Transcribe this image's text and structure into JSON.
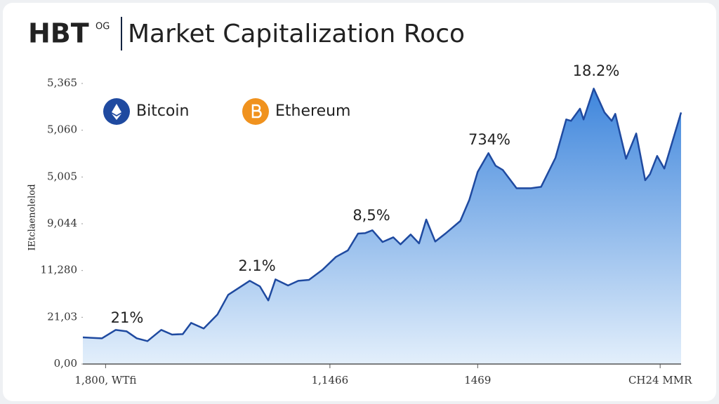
{
  "chart_data": {
    "type": "area",
    "title_prefix": "HBT",
    "title_badge": "OG",
    "title": "Market Capitalization Roco",
    "y_label": "IEtclaenolelod",
    "legend": [
      {
        "name": "Bitcoin",
        "color": "#1f4aa0"
      },
      {
        "name": "Ethereum",
        "color": "#f0921e"
      }
    ],
    "x": [
      0,
      3.2,
      5.5,
      7.3,
      9.0,
      10.8,
      13.1,
      14.9,
      16.7,
      18.1,
      20.2,
      22.5,
      24.3,
      26.1,
      27.9,
      29.6,
      31.0,
      32.2,
      34.3,
      36.0,
      37.8,
      40.1,
      42.3,
      44.3,
      46.0,
      47.2,
      48.4,
      50.1,
      51.9,
      53.1,
      54.8,
      56.2,
      57.4,
      58.9,
      60.7,
      63.1,
      64.6,
      66.0,
      67.8,
      69.0,
      70.2,
      72.5,
      74.9,
      76.6,
      79.0,
      80.8,
      81.6,
      83.1,
      83.7,
      85.4,
      87.2,
      88.4,
      89.0,
      90.8,
      92.5,
      94.0,
      94.8,
      96.0,
      97.2,
      100
    ],
    "series": [
      {
        "color": "#1f4aa0",
        "values": [
          0.57,
          0.55,
          0.73,
          0.7,
          0.55,
          0.49,
          0.73,
          0.63,
          0.64,
          0.88,
          0.76,
          1.06,
          1.48,
          1.63,
          1.78,
          1.66,
          1.36,
          1.81,
          1.68,
          1.78,
          1.8,
          2.02,
          2.29,
          2.43,
          2.79,
          2.8,
          2.86,
          2.61,
          2.71,
          2.56,
          2.77,
          2.58,
          3.09,
          2.62,
          2.8,
          3.06,
          3.51,
          4.11,
          4.51,
          4.24,
          4.15,
          3.76,
          3.76,
          3.79,
          4.41,
          5.23,
          5.2,
          5.46,
          5.23,
          5.89,
          5.38,
          5.2,
          5.35,
          4.39,
          4.93,
          3.93,
          4.06,
          4.45,
          4.18,
          5.38
        ]
      }
    ],
    "annotations": [
      "21%",
      "2.1%",
      "8,5%",
      "734%",
      "18.2%"
    ],
    "xlim": [
      0,
      100
    ],
    "xticks": [
      {
        "value": 3.8,
        "label": "1,800, WTfi"
      },
      {
        "value": 41.3,
        "label": "1,1466"
      },
      {
        "value": 66,
        "label": "1469"
      },
      {
        "value": 96.5,
        "label": "CH24 MMR"
      }
    ],
    "ylim": [
      0,
      6.3
    ],
    "yticks": [
      {
        "value": 0,
        "label": "0,00"
      },
      {
        "value": 1,
        "label": "21,0З"
      },
      {
        "value": 2,
        "label": "11,280"
      },
      {
        "value": 3,
        "label": "9,044"
      },
      {
        "value": 4,
        "label": "5,005"
      },
      {
        "value": 5,
        "label": "5,060"
      },
      {
        "value": 6,
        "label": "5,365"
      }
    ]
  }
}
